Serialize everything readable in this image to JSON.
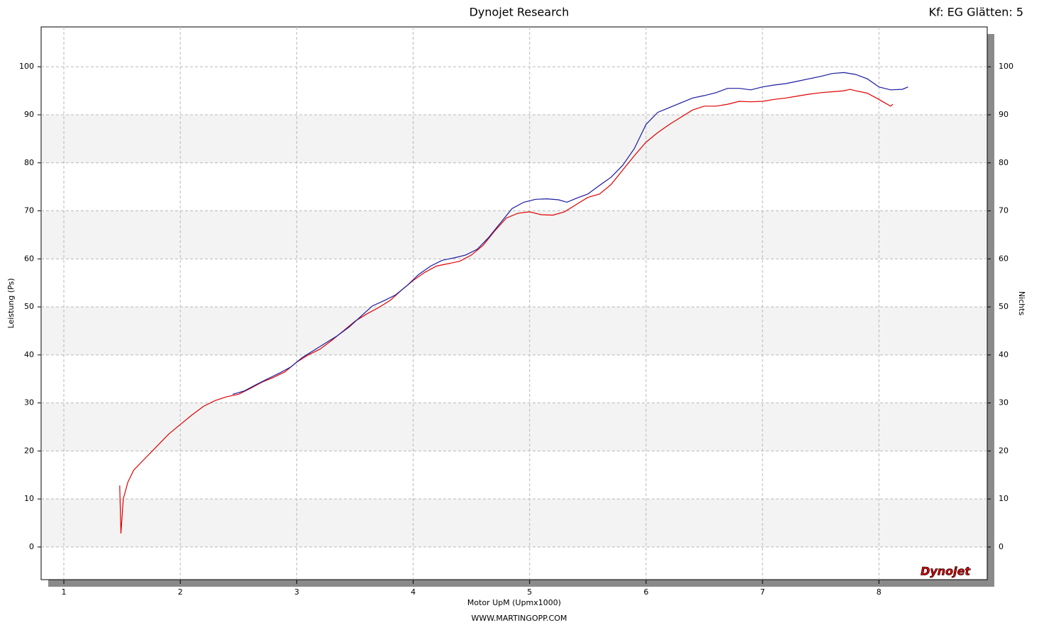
{
  "chart_data": {
    "type": "line",
    "title": "Dynojet Research",
    "subtitle": "Kf: EG Glätten: 5",
    "y_label": "Leistung (Ps)",
    "y2_label": "Nichts",
    "x_label": "Motor UpM (Upmx1000)",
    "footer": "WWW.MARTINGOPP.COM",
    "logo": "Dynojet",
    "xlim": [
      0.805,
      8.93
    ],
    "xticks": [
      1,
      2,
      3,
      4,
      5,
      6,
      7,
      8
    ],
    "ylim": [
      -6.8,
      108.3
    ],
    "yticks": [
      0,
      10,
      20,
      30,
      40,
      50,
      60,
      70,
      80,
      90,
      100
    ],
    "y2lim": [
      -6.8,
      108.3
    ],
    "y2ticks": [
      0,
      10,
      20,
      30,
      40,
      50,
      60,
      70,
      80,
      90,
      100
    ],
    "grid": true,
    "shaded_bands": true,
    "series": [
      {
        "color": "#e00000",
        "x": [
          1.48,
          1.49,
          1.51,
          1.55,
          1.6,
          1.7,
          1.8,
          1.9,
          2.0,
          2.1,
          2.2,
          2.3,
          2.4,
          2.5,
          2.6,
          2.7,
          2.8,
          2.9,
          3.0,
          3.1,
          3.2,
          3.3,
          3.4,
          3.5,
          3.6,
          3.7,
          3.8,
          3.9,
          4.0,
          4.1,
          4.2,
          4.3,
          4.4,
          4.5,
          4.6,
          4.7,
          4.8,
          4.9,
          5.0,
          5.1,
          5.2,
          5.3,
          5.4,
          5.5,
          5.6,
          5.7,
          5.8,
          5.9,
          6.0,
          6.1,
          6.2,
          6.3,
          6.4,
          6.5,
          6.6,
          6.7,
          6.8,
          6.9,
          7.0,
          7.1,
          7.2,
          7.3,
          7.4,
          7.5,
          7.6,
          7.7,
          7.75,
          7.8,
          7.9,
          8.0,
          8.1,
          8.12
        ],
        "values": [
          12.8,
          2.8,
          10,
          13.5,
          16,
          18.5,
          21,
          23.5,
          25.5,
          27.5,
          29.3,
          30.5,
          31.3,
          31.8,
          33,
          34.3,
          35.3,
          36.5,
          38.5,
          40,
          41.2,
          43,
          45,
          47,
          48.5,
          49.8,
          51.3,
          53.5,
          55.5,
          57.2,
          58.5,
          59,
          59.5,
          60.8,
          62.8,
          65.8,
          68.5,
          69.5,
          69.8,
          69.2,
          69.1,
          69.8,
          71.3,
          72.8,
          73.5,
          75.5,
          78.5,
          81.5,
          84.3,
          86.3,
          88,
          89.5,
          91,
          91.8,
          91.8,
          92.2,
          92.8,
          92.7,
          92.8,
          93.2,
          93.5,
          93.9,
          94.3,
          94.6,
          94.8,
          95,
          95.3,
          95,
          94.5,
          93.2,
          91.8,
          92.2
        ]
      },
      {
        "color": "#1a1aa0",
        "x": [
          2.45,
          2.55,
          2.65,
          2.75,
          2.85,
          2.95,
          3.05,
          3.15,
          3.25,
          3.35,
          3.45,
          3.55,
          3.65,
          3.75,
          3.85,
          3.95,
          4.05,
          4.15,
          4.25,
          4.35,
          4.45,
          4.55,
          4.65,
          4.75,
          4.85,
          4.95,
          5.05,
          5.15,
          5.25,
          5.32,
          5.4,
          5.5,
          5.6,
          5.7,
          5.8,
          5.9,
          6.0,
          6.1,
          6.2,
          6.3,
          6.4,
          6.5,
          6.6,
          6.7,
          6.8,
          6.9,
          7.0,
          7.1,
          7.2,
          7.3,
          7.4,
          7.5,
          7.6,
          7.7,
          7.8,
          7.9,
          8.0,
          8.1,
          8.2,
          8.25
        ],
        "values": [
          31.8,
          32.5,
          33.8,
          35,
          36.2,
          37.5,
          39.5,
          41,
          42.5,
          44,
          45.8,
          48,
          50.2,
          51.3,
          52.5,
          54.5,
          56.8,
          58.5,
          59.7,
          60.2,
          60.8,
          62,
          64.5,
          67.5,
          70.5,
          71.8,
          72.4,
          72.5,
          72.3,
          71.8,
          72.6,
          73.5,
          75.3,
          77,
          79.5,
          83,
          88,
          90.5,
          91.5,
          92.5,
          93.5,
          94,
          94.6,
          95.5,
          95.5,
          95.2,
          95.8,
          96.2,
          96.5,
          97,
          97.5,
          98,
          98.6,
          98.8,
          98.4,
          97.5,
          95.8,
          95.2,
          95.3,
          95.8
        ]
      }
    ]
  }
}
